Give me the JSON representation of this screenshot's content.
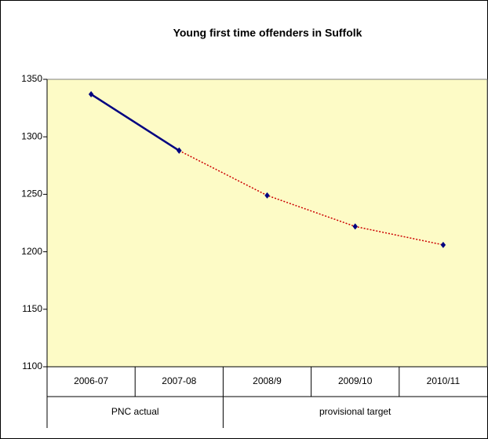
{
  "chart_data": {
    "type": "line",
    "title": "Young first time offenders in Suffolk",
    "categories": [
      "2006-07",
      "2007-08",
      "2008/9",
      "2009/10",
      "2010/11"
    ],
    "category_groups": [
      {
        "name": "PNC actual",
        "size": 2
      },
      {
        "name": "provisional target",
        "size": 3
      }
    ],
    "series": [
      {
        "color": "#000080",
        "marker_color": "#000080",
        "dash": false,
        "values": [
          1337,
          1288,
          null,
          null,
          null
        ]
      },
      {
        "color": "#cc0000",
        "marker_color": "#000080",
        "dash": true,
        "values": [
          null,
          1288,
          1249,
          1222,
          1206
        ]
      }
    ],
    "ylim": [
      1100,
      1350
    ],
    "yticks": [
      1100,
      1150,
      1200,
      1250,
      1300,
      1350
    ],
    "background": "#fdfbc6",
    "grid": false
  }
}
